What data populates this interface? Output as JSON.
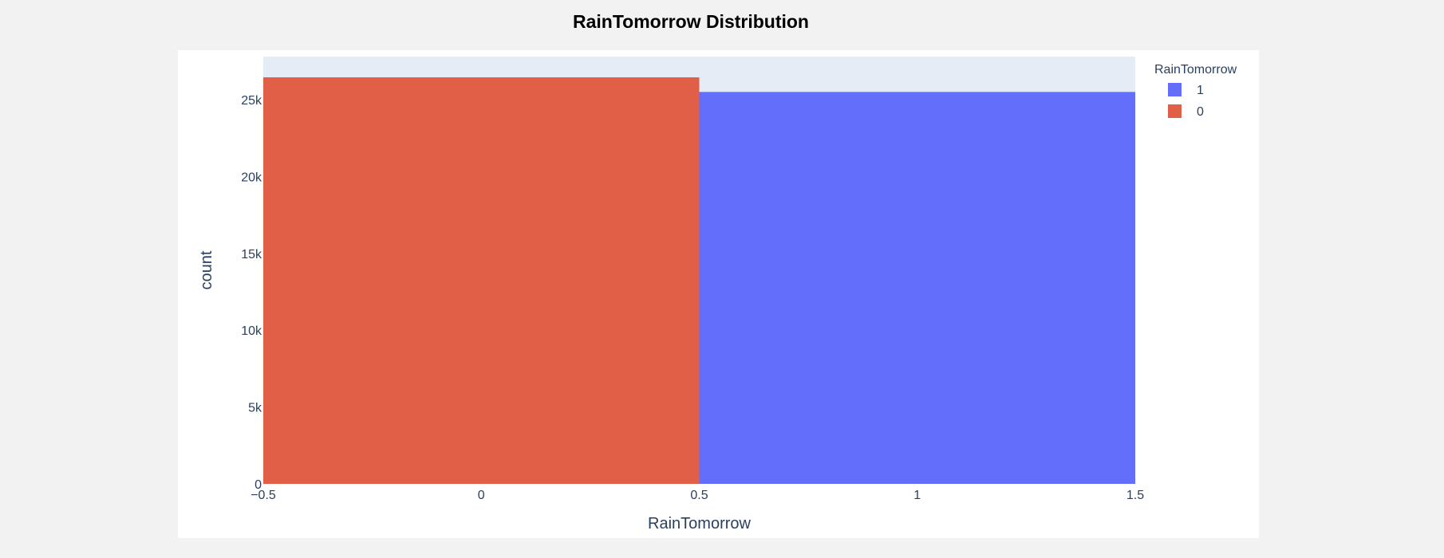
{
  "chart_data": {
    "type": "bar",
    "title": "RainTomorrow Distribution",
    "xlabel": "RainTomorrow",
    "ylabel": "count",
    "xlim": [
      -0.5,
      1.5
    ],
    "ylim": [
      0,
      27800
    ],
    "x_ticks": [
      {
        "value": -0.5,
        "label": "−0.5"
      },
      {
        "value": 0,
        "label": "0"
      },
      {
        "value": 0.5,
        "label": "0.5"
      },
      {
        "value": 1,
        "label": "1"
      },
      {
        "value": 1.5,
        "label": "1.5"
      }
    ],
    "y_ticks": [
      {
        "value": 0,
        "label": "0"
      },
      {
        "value": 5000,
        "label": "5k"
      },
      {
        "value": 10000,
        "label": "10k"
      },
      {
        "value": 15000,
        "label": "15k"
      },
      {
        "value": 20000,
        "label": "20k"
      },
      {
        "value": 25000,
        "label": "25k"
      }
    ],
    "grid": false,
    "legend": {
      "title": "RainTomorrow",
      "placement": "top-right"
    },
    "series": [
      {
        "name": "1",
        "category": "1",
        "x_start": 0.5,
        "x_end": 1.5,
        "value": 25500,
        "color": "#636efa"
      },
      {
        "name": "0",
        "category": "0",
        "x_start": -0.5,
        "x_end": 0.5,
        "value": 26450,
        "color": "#e05f46"
      }
    ],
    "colors": {
      "plot_background": "#e5ecf6",
      "page_background": "#f2f2f2",
      "axis_text": "#2a3f5f"
    }
  }
}
